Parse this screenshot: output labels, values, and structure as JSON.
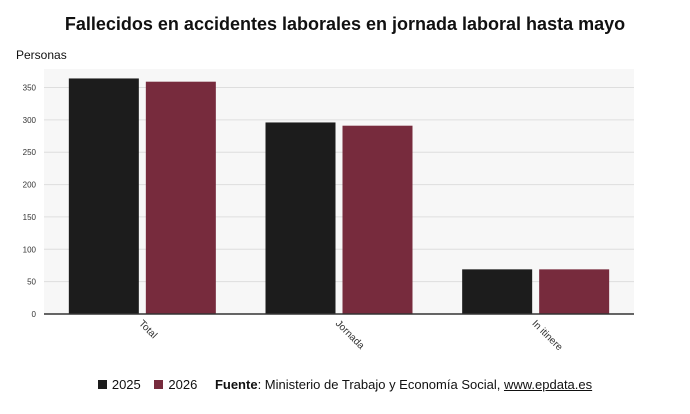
{
  "chart_data": {
    "type": "bar",
    "title": "Fallecidos en accidentes laborales en jornada laboral hasta mayo",
    "ylabel": "Personas",
    "xlabel": "",
    "categories": [
      "Total",
      "Jornada",
      "In itinere"
    ],
    "series": [
      {
        "name": "2025",
        "values": [
          364,
          296,
          69
        ]
      },
      {
        "name": "2026",
        "values": [
          359,
          291,
          69
        ]
      }
    ],
    "ylim": [
      0,
      380
    ],
    "yticks": [
      0,
      50,
      100,
      150,
      200,
      250,
      300,
      350
    ],
    "grid": true,
    "legend_position": "bottom",
    "colors": [
      "#1c1c1c",
      "#772b3d"
    ]
  },
  "footer": {
    "source_label": "Fuente",
    "source_text": ": Ministerio de Trabajo y Economía Social,",
    "source_link": "www.epdata.es"
  }
}
